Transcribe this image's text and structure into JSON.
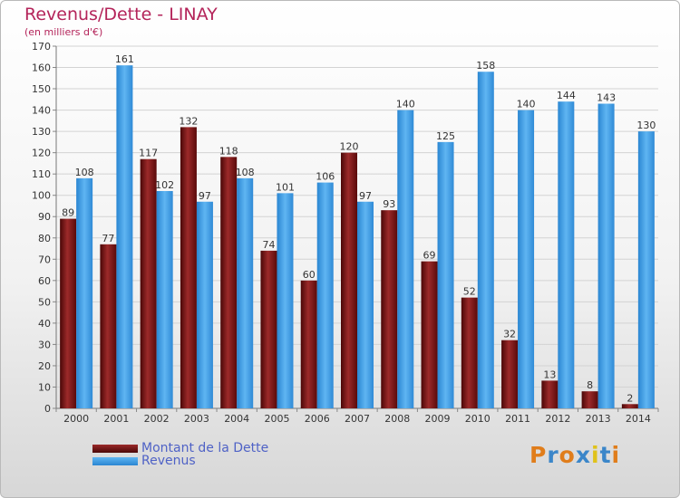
{
  "header": {
    "title": "Revenus/Dette - LINAY",
    "subtitle": "(en milliers d'€)"
  },
  "colors": {
    "debt": "#7a1414",
    "revenue": "#3e9be4",
    "title": "#b4245a",
    "legend_text": "#4f62c6"
  },
  "legend": {
    "debt_label": "Montant de la Dette",
    "revenue_label": "Revenus"
  },
  "logo": {
    "text": "Proxiti",
    "letter_colors": [
      "#e07d1b",
      "#3b86c9",
      "#e07d1b",
      "#3b86c9",
      "#e0c21b",
      "#3b86c9",
      "#e07d1b"
    ]
  },
  "chart_data": {
    "type": "bar",
    "title": "Revenus/Dette - LINAY",
    "subtitle": "(en milliers d'€)",
    "categories": [
      "2000",
      "2001",
      "2002",
      "2003",
      "2004",
      "2005",
      "2006",
      "2007",
      "2008",
      "2009",
      "2010",
      "2011",
      "2012",
      "2013",
      "2014"
    ],
    "series": [
      {
        "name": "Montant de la Dette",
        "values": [
          89,
          77,
          117,
          132,
          118,
          74,
          60,
          120,
          93,
          69,
          52,
          32,
          13,
          8,
          2
        ]
      },
      {
        "name": "Revenus",
        "values": [
          108,
          161,
          102,
          97,
          108,
          101,
          106,
          97,
          140,
          125,
          158,
          140,
          144,
          143,
          130
        ]
      }
    ],
    "ylim": [
      0,
      170
    ],
    "yticks": [
      0,
      10,
      20,
      30,
      40,
      50,
      60,
      70,
      80,
      90,
      100,
      110,
      120,
      130,
      140,
      150,
      160,
      170
    ],
    "grid": true,
    "legend_position": "bottom-left"
  }
}
